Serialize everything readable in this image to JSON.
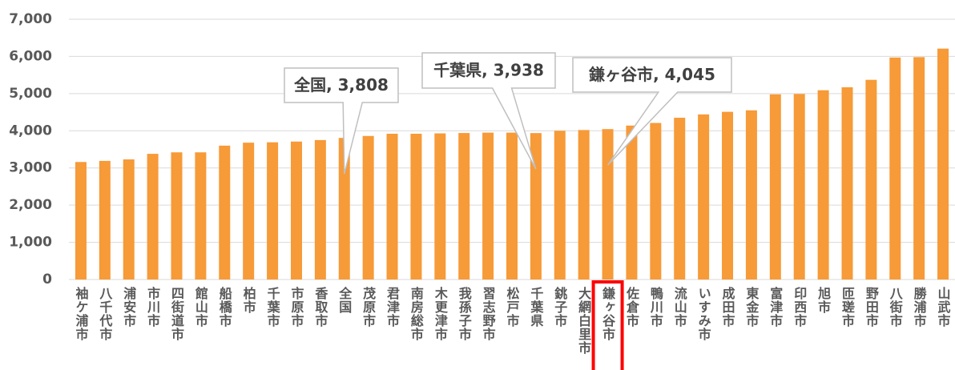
{
  "chart_data": {
    "type": "bar",
    "categories": [
      "袖ケ浦市",
      "八千代市",
      "浦安市",
      "市川市",
      "四街道市",
      "館山市",
      "船橋市",
      "柏市",
      "千葉市",
      "市原市",
      "香取市",
      "全国",
      "茂原市",
      "君津市",
      "南房総市",
      "木更津市",
      "我孫子市",
      "習志野市",
      "松戸市",
      "千葉県",
      "銚子市",
      "大網白里市",
      "鎌ヶ谷市",
      "佐倉市",
      "鴨川市",
      "流山市",
      "いすみ市",
      "成田市",
      "東金市",
      "富津市",
      "印西市",
      "旭市",
      "匝瑳市",
      "野田市",
      "八街市",
      "勝浦市",
      "山武市"
    ],
    "values": [
      3160,
      3190,
      3230,
      3380,
      3420,
      3420,
      3600,
      3680,
      3690,
      3710,
      3750,
      3808,
      3860,
      3920,
      3920,
      3930,
      3940,
      3950,
      3950,
      3938,
      4000,
      4020,
      4045,
      4140,
      4210,
      4350,
      4440,
      4510,
      4550,
      4980,
      4990,
      5090,
      5170,
      5370,
      5970,
      5980,
      6210
    ],
    "color": "#f79a38",
    "ylim": [
      0,
      7000
    ],
    "yticks": [
      0,
      {
        "value": 1000,
        "label": "1,000"
      },
      {
        "value": 2000,
        "label": "2,000"
      },
      {
        "value": 3000,
        "label": "3,000"
      },
      {
        "value": 4000,
        "label": "4,000"
      },
      {
        "value": 5000,
        "label": "5,000"
      },
      {
        "value": 6000,
        "label": "6,000"
      },
      {
        "value": 7000,
        "label": "7,000"
      }
    ],
    "grid": true,
    "annotations": [
      {
        "category": "全国",
        "text": "全国, 3,808"
      },
      {
        "category": "千葉県",
        "text": "千葉県, 3,938"
      },
      {
        "category": "鎌ヶ谷市",
        "text": "鎌ヶ谷市, 4,045"
      }
    ],
    "highlight": {
      "category": "鎌ヶ谷市",
      "color": "#ff0000"
    }
  }
}
